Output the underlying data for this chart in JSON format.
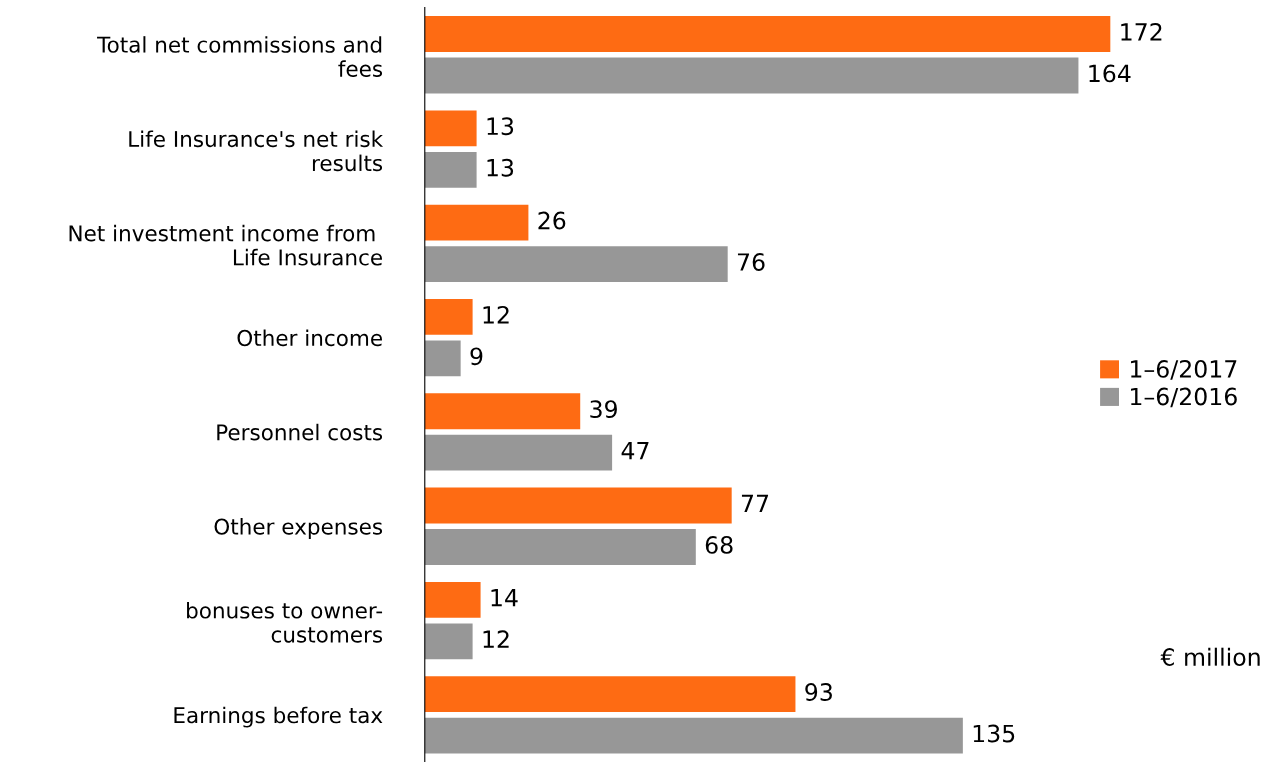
{
  "chart_data": {
    "type": "bar",
    "orientation": "horizontal",
    "data_labels": true,
    "legend": "right",
    "grid": false,
    "categories": [
      "Total net commissions and\nfees",
      "Life Insurance's net risk\nresults",
      "Net investment income from \nLife Insurance",
      "Other income",
      "Personnel costs",
      "Other expenses",
      "bonuses to owner-\ncustomers",
      "Earnings before tax"
    ],
    "series": [
      {
        "name": "1–6/2017",
        "color": "#fe6b13",
        "values": [
          172,
          13,
          26,
          12,
          39,
          77,
          14,
          93
        ]
      },
      {
        "name": "1–6/2016",
        "color": "#979797",
        "values": [
          164,
          13,
          76,
          9,
          47,
          68,
          12,
          135
        ]
      }
    ],
    "annotations": [
      "€ million"
    ]
  }
}
